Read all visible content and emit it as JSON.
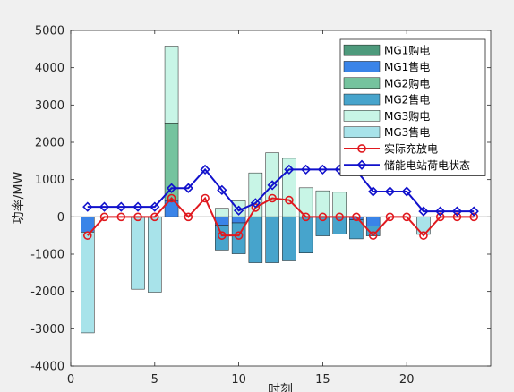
{
  "chart_data": {
    "type": "bar",
    "subtype": "stacked-bar-with-lines",
    "title": "",
    "xlabel": "时刻",
    "ylabel": "功率/MW",
    "xlim": [
      0,
      25
    ],
    "ylim": [
      -4000,
      5000
    ],
    "xticks": [
      0,
      5,
      10,
      15,
      20
    ],
    "yticks": [
      -4000,
      -3000,
      -2000,
      -1000,
      0,
      1000,
      2000,
      3000,
      4000,
      5000
    ],
    "grid": false,
    "legend_position": "top-right",
    "x": [
      1,
      2,
      3,
      4,
      5,
      6,
      7,
      8,
      9,
      10,
      11,
      12,
      13,
      14,
      15,
      16,
      17,
      18,
      19,
      20,
      21,
      22,
      23,
      24
    ],
    "bar_series": [
      {
        "name": "MG1购电",
        "color": "#4e9a7c",
        "values": [
          0,
          0,
          0,
          0,
          0,
          0,
          0,
          0,
          0,
          0,
          0,
          0,
          0,
          0,
          0,
          0,
          0,
          0,
          0,
          0,
          0,
          0,
          0,
          0
        ]
      },
      {
        "name": "MG1售电",
        "color": "#3a84e8",
        "values": [
          -410,
          0,
          0,
          0,
          0,
          440,
          0,
          0,
          -220,
          -160,
          0,
          0,
          0,
          0,
          0,
          0,
          -80,
          -250,
          0,
          0,
          0,
          0,
          0,
          0
        ]
      },
      {
        "name": "MG2购电",
        "color": "#75c39e",
        "values": [
          0,
          0,
          0,
          0,
          0,
          2080,
          0,
          0,
          0,
          0,
          0,
          0,
          0,
          0,
          0,
          0,
          0,
          0,
          0,
          0,
          0,
          0,
          0,
          0
        ]
      },
      {
        "name": "MG2售电",
        "color": "#47a4cc",
        "values": [
          0,
          0,
          0,
          0,
          0,
          0,
          0,
          0,
          -670,
          -830,
          -1230,
          -1230,
          -1180,
          -970,
          -510,
          -460,
          -510,
          -260,
          0,
          0,
          0,
          0,
          0,
          0
        ]
      },
      {
        "name": "MG3购电",
        "color": "#c8f5e6",
        "values": [
          0,
          0,
          0,
          0,
          0,
          2060,
          0,
          0,
          230,
          430,
          1180,
          1720,
          1570,
          780,
          700,
          660,
          0,
          0,
          0,
          0,
          0,
          0,
          0,
          0
        ]
      },
      {
        "name": "MG3售电",
        "color": "#a8e3ea",
        "values": [
          -2700,
          0,
          0,
          -1940,
          -2020,
          0,
          0,
          0,
          0,
          0,
          0,
          0,
          0,
          0,
          0,
          0,
          0,
          0,
          0,
          0,
          -470,
          0,
          0,
          0
        ]
      }
    ],
    "line_series": [
      {
        "name": "实际充放电",
        "color": "#e0191f",
        "marker": "circle",
        "values": [
          -500,
          0,
          0,
          0,
          0,
          500,
          0,
          500,
          -500,
          -500,
          250,
          500,
          450,
          0,
          0,
          0,
          0,
          -500,
          0,
          0,
          -500,
          0,
          0,
          0
        ]
      },
      {
        "name": "储能电站荷电状态",
        "color": "#1111cc",
        "marker": "diamond",
        "values": [
          270,
          270,
          270,
          270,
          270,
          770,
          770,
          1270,
          720,
          170,
          370,
          850,
          1270,
          1270,
          1270,
          1270,
          1250,
          680,
          680,
          680,
          150,
          150,
          150,
          150
        ]
      }
    ]
  }
}
